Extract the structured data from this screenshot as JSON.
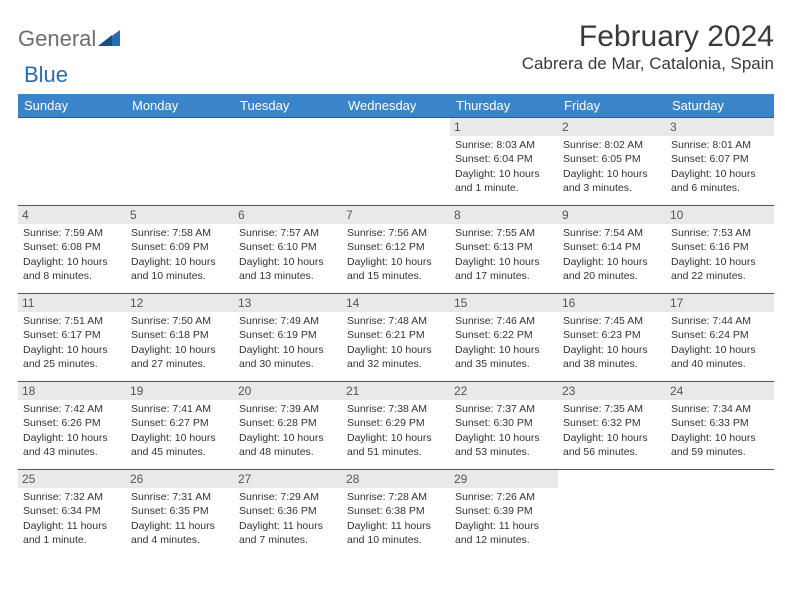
{
  "brand": {
    "part1": "General",
    "part2": "Blue"
  },
  "title": "February 2024",
  "location": "Cabrera de Mar, Catalonia, Spain",
  "colors": {
    "header_bg": "#3a85c9",
    "header_fg": "#ffffff",
    "cell_border": "#2f5b8a",
    "daynum_bg": "#e9e9e9",
    "logo_gray": "#6d6d6d",
    "logo_blue": "#2a6cb3"
  },
  "day_headers": [
    "Sunday",
    "Monday",
    "Tuesday",
    "Wednesday",
    "Thursday",
    "Friday",
    "Saturday"
  ],
  "weeks": [
    [
      {
        "n": "",
        "sr": "",
        "ss": "",
        "dl": ""
      },
      {
        "n": "",
        "sr": "",
        "ss": "",
        "dl": ""
      },
      {
        "n": "",
        "sr": "",
        "ss": "",
        "dl": ""
      },
      {
        "n": "",
        "sr": "",
        "ss": "",
        "dl": ""
      },
      {
        "n": "1",
        "sr": "Sunrise: 8:03 AM",
        "ss": "Sunset: 6:04 PM",
        "dl": "Daylight: 10 hours and 1 minute."
      },
      {
        "n": "2",
        "sr": "Sunrise: 8:02 AM",
        "ss": "Sunset: 6:05 PM",
        "dl": "Daylight: 10 hours and 3 minutes."
      },
      {
        "n": "3",
        "sr": "Sunrise: 8:01 AM",
        "ss": "Sunset: 6:07 PM",
        "dl": "Daylight: 10 hours and 6 minutes."
      }
    ],
    [
      {
        "n": "4",
        "sr": "Sunrise: 7:59 AM",
        "ss": "Sunset: 6:08 PM",
        "dl": "Daylight: 10 hours and 8 minutes."
      },
      {
        "n": "5",
        "sr": "Sunrise: 7:58 AM",
        "ss": "Sunset: 6:09 PM",
        "dl": "Daylight: 10 hours and 10 minutes."
      },
      {
        "n": "6",
        "sr": "Sunrise: 7:57 AM",
        "ss": "Sunset: 6:10 PM",
        "dl": "Daylight: 10 hours and 13 minutes."
      },
      {
        "n": "7",
        "sr": "Sunrise: 7:56 AM",
        "ss": "Sunset: 6:12 PM",
        "dl": "Daylight: 10 hours and 15 minutes."
      },
      {
        "n": "8",
        "sr": "Sunrise: 7:55 AM",
        "ss": "Sunset: 6:13 PM",
        "dl": "Daylight: 10 hours and 17 minutes."
      },
      {
        "n": "9",
        "sr": "Sunrise: 7:54 AM",
        "ss": "Sunset: 6:14 PM",
        "dl": "Daylight: 10 hours and 20 minutes."
      },
      {
        "n": "10",
        "sr": "Sunrise: 7:53 AM",
        "ss": "Sunset: 6:16 PM",
        "dl": "Daylight: 10 hours and 22 minutes."
      }
    ],
    [
      {
        "n": "11",
        "sr": "Sunrise: 7:51 AM",
        "ss": "Sunset: 6:17 PM",
        "dl": "Daylight: 10 hours and 25 minutes."
      },
      {
        "n": "12",
        "sr": "Sunrise: 7:50 AM",
        "ss": "Sunset: 6:18 PM",
        "dl": "Daylight: 10 hours and 27 minutes."
      },
      {
        "n": "13",
        "sr": "Sunrise: 7:49 AM",
        "ss": "Sunset: 6:19 PM",
        "dl": "Daylight: 10 hours and 30 minutes."
      },
      {
        "n": "14",
        "sr": "Sunrise: 7:48 AM",
        "ss": "Sunset: 6:21 PM",
        "dl": "Daylight: 10 hours and 32 minutes."
      },
      {
        "n": "15",
        "sr": "Sunrise: 7:46 AM",
        "ss": "Sunset: 6:22 PM",
        "dl": "Daylight: 10 hours and 35 minutes."
      },
      {
        "n": "16",
        "sr": "Sunrise: 7:45 AM",
        "ss": "Sunset: 6:23 PM",
        "dl": "Daylight: 10 hours and 38 minutes."
      },
      {
        "n": "17",
        "sr": "Sunrise: 7:44 AM",
        "ss": "Sunset: 6:24 PM",
        "dl": "Daylight: 10 hours and 40 minutes."
      }
    ],
    [
      {
        "n": "18",
        "sr": "Sunrise: 7:42 AM",
        "ss": "Sunset: 6:26 PM",
        "dl": "Daylight: 10 hours and 43 minutes."
      },
      {
        "n": "19",
        "sr": "Sunrise: 7:41 AM",
        "ss": "Sunset: 6:27 PM",
        "dl": "Daylight: 10 hours and 45 minutes."
      },
      {
        "n": "20",
        "sr": "Sunrise: 7:39 AM",
        "ss": "Sunset: 6:28 PM",
        "dl": "Daylight: 10 hours and 48 minutes."
      },
      {
        "n": "21",
        "sr": "Sunrise: 7:38 AM",
        "ss": "Sunset: 6:29 PM",
        "dl": "Daylight: 10 hours and 51 minutes."
      },
      {
        "n": "22",
        "sr": "Sunrise: 7:37 AM",
        "ss": "Sunset: 6:30 PM",
        "dl": "Daylight: 10 hours and 53 minutes."
      },
      {
        "n": "23",
        "sr": "Sunrise: 7:35 AM",
        "ss": "Sunset: 6:32 PM",
        "dl": "Daylight: 10 hours and 56 minutes."
      },
      {
        "n": "24",
        "sr": "Sunrise: 7:34 AM",
        "ss": "Sunset: 6:33 PM",
        "dl": "Daylight: 10 hours and 59 minutes."
      }
    ],
    [
      {
        "n": "25",
        "sr": "Sunrise: 7:32 AM",
        "ss": "Sunset: 6:34 PM",
        "dl": "Daylight: 11 hours and 1 minute."
      },
      {
        "n": "26",
        "sr": "Sunrise: 7:31 AM",
        "ss": "Sunset: 6:35 PM",
        "dl": "Daylight: 11 hours and 4 minutes."
      },
      {
        "n": "27",
        "sr": "Sunrise: 7:29 AM",
        "ss": "Sunset: 6:36 PM",
        "dl": "Daylight: 11 hours and 7 minutes."
      },
      {
        "n": "28",
        "sr": "Sunrise: 7:28 AM",
        "ss": "Sunset: 6:38 PM",
        "dl": "Daylight: 11 hours and 10 minutes."
      },
      {
        "n": "29",
        "sr": "Sunrise: 7:26 AM",
        "ss": "Sunset: 6:39 PM",
        "dl": "Daylight: 11 hours and 12 minutes."
      },
      {
        "n": "",
        "sr": "",
        "ss": "",
        "dl": ""
      },
      {
        "n": "",
        "sr": "",
        "ss": "",
        "dl": ""
      }
    ]
  ]
}
